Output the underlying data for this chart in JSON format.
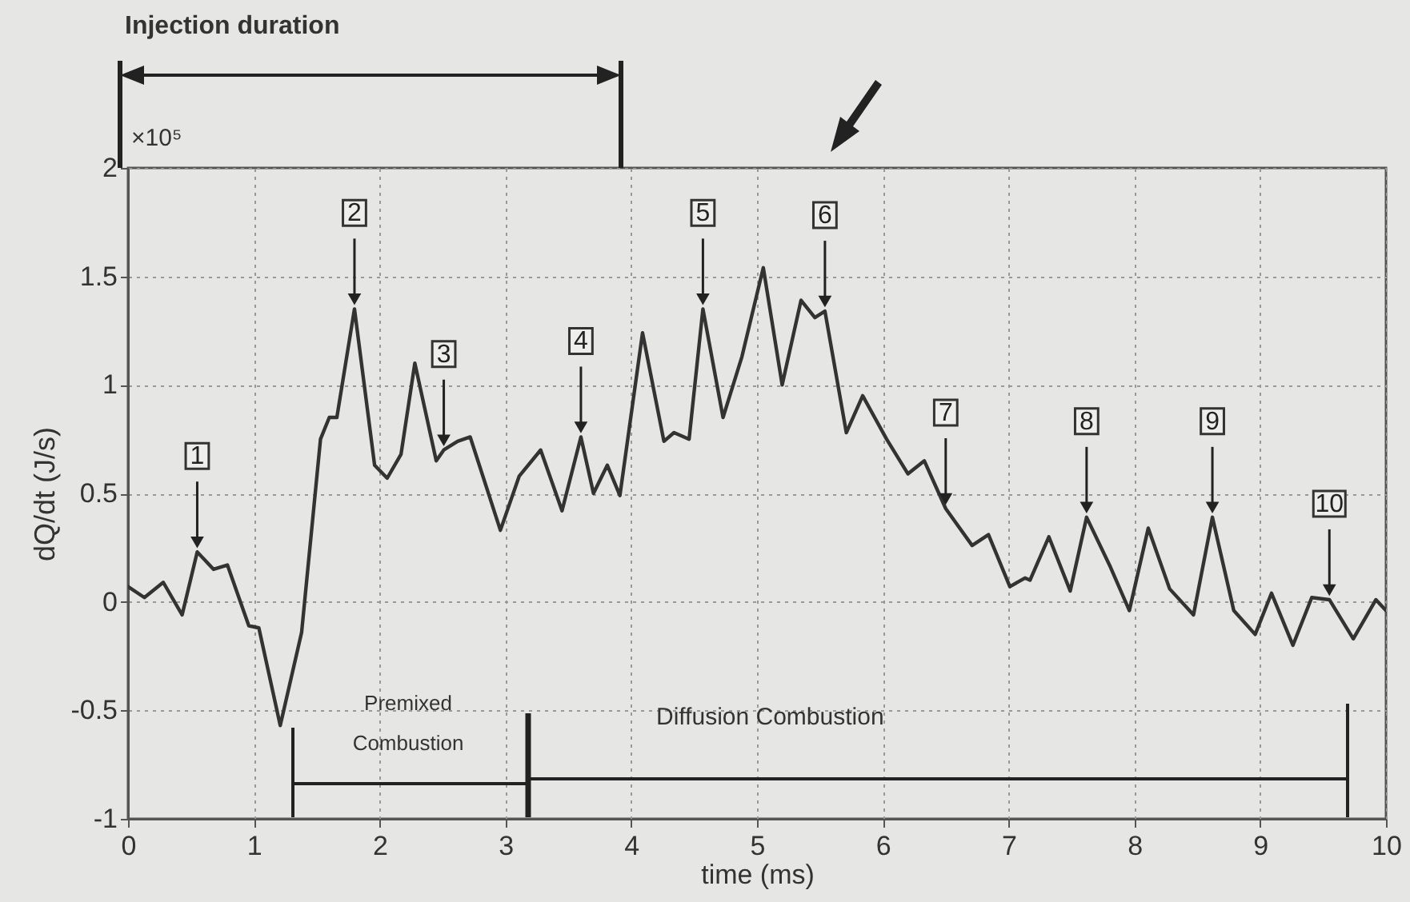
{
  "chart_data": {
    "type": "line",
    "xlabel": "time (ms)",
    "ylabel": "dQ/dt (J/s)",
    "xlim": [
      0,
      10
    ],
    "xticks": [
      0,
      1,
      2,
      3,
      4,
      5,
      6,
      7,
      8,
      9,
      10
    ],
    "ylim": [
      -1,
      2
    ],
    "yticks": [
      -1,
      -0.5,
      0,
      0.5,
      1,
      1.5,
      2
    ],
    "grid": true,
    "line_style": "solid",
    "series": [
      {
        "color": "#333333",
        "x": [
          0,
          0.13,
          0.28,
          0.43,
          0.55,
          0.68,
          0.79,
          0.96,
          1.04,
          1.21,
          1.38,
          1.53,
          1.6,
          1.66,
          1.8,
          1.96,
          2.06,
          2.17,
          2.28,
          2.45,
          2.51,
          2.62,
          2.72,
          2.96,
          3.11,
          3.28,
          3.45,
          3.6,
          3.7,
          3.81,
          3.91,
          4.09,
          4.26,
          4.34,
          4.46,
          4.57,
          4.73,
          4.88,
          5.05,
          5.2,
          5.35,
          5.46,
          5.54,
          5.71,
          5.84,
          6.03,
          6.2,
          6.33,
          6.5,
          6.71,
          6.84,
          7.01,
          7.13,
          7.17,
          7.32,
          7.49,
          7.62,
          7.81,
          7.96,
          8.11,
          8.28,
          8.47,
          8.62,
          8.79,
          8.96,
          9.09,
          9.26,
          9.41,
          9.55,
          9.74,
          9.92,
          10
        ],
        "values": [
          0.07,
          0.02,
          0.09,
          -0.06,
          0.23,
          0.15,
          0.17,
          -0.11,
          -0.12,
          -0.57,
          -0.14,
          0.75,
          0.85,
          0.85,
          1.35,
          0.63,
          0.57,
          0.68,
          1.1,
          0.65,
          0.7,
          0.74,
          0.76,
          0.33,
          0.58,
          0.7,
          0.42,
          0.76,
          0.5,
          0.63,
          0.49,
          1.24,
          0.74,
          0.78,
          0.75,
          1.35,
          0.85,
          1.13,
          1.54,
          1.0,
          1.39,
          1.31,
          1.34,
          0.78,
          0.95,
          0.75,
          0.59,
          0.65,
          0.43,
          0.26,
          0.31,
          0.07,
          0.11,
          0.1,
          0.3,
          0.05,
          0.39,
          0.16,
          -0.04,
          0.34,
          0.06,
          -0.06,
          0.39,
          -0.04,
          -0.15,
          0.04,
          -0.2,
          0.02,
          0.01,
          -0.17,
          0.01,
          -0.04
        ]
      }
    ],
    "annotations": [
      "×10⁵",
      "Injection duration",
      "Premixed Combustion",
      "Diffusion Combustion",
      {
        "text": "1",
        "x": 0.55,
        "y": 0.23
      },
      {
        "text": "2",
        "x": 1.8,
        "y": 1.35
      },
      {
        "text": "3",
        "x": 2.51,
        "y": 0.7
      },
      {
        "text": "4",
        "x": 3.6,
        "y": 0.76
      },
      {
        "text": "5",
        "x": 4.57,
        "y": 1.35
      },
      {
        "text": "6",
        "x": 5.54,
        "y": 1.34
      },
      {
        "text": "7",
        "x": 6.5,
        "y": 0.43
      },
      {
        "text": "8",
        "x": 7.62,
        "y": 0.39
      },
      {
        "text": "9",
        "x": 8.62,
        "y": 0.39
      },
      {
        "text": "10",
        "x": 9.55,
        "y": 0.01
      }
    ]
  }
}
